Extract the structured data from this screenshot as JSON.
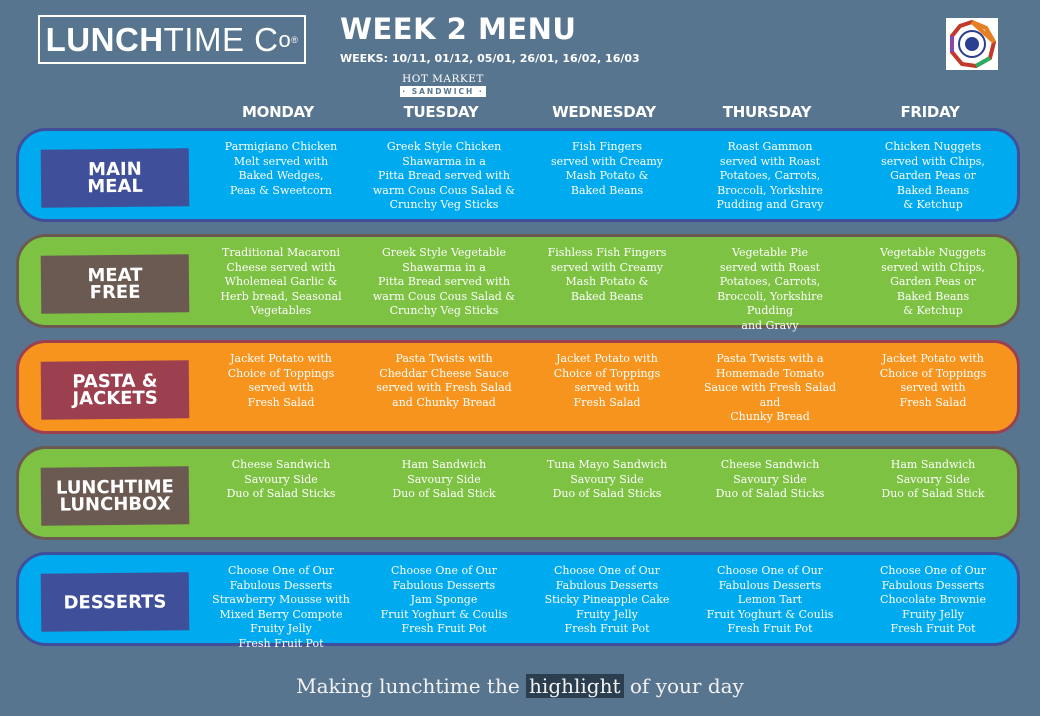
{
  "brand": {
    "logo_bold": "LUNCH",
    "logo_light": "TIME C",
    "logo_o": "o",
    "logo_reg": "®"
  },
  "header": {
    "title": "WEEK 2 MENU",
    "weeks": "WEEKS: 10/11, 01/12, 05/01, 26/01, 16/02, 16/03",
    "hot_market": "HOT MARKET",
    "sandwich": "· SANDWICH ·"
  },
  "days": [
    "MONDAY",
    "TUESDAY",
    "WEDNESDAY",
    "THURSDAY",
    "FRIDAY"
  ],
  "colors": {
    "background": "#587590",
    "blue": "#00aaee",
    "green": "#7dc242",
    "orange": "#f7941d"
  },
  "rows": [
    {
      "label": "MAIN\nMEAL",
      "items": [
        "Parmigiano Chicken\nMelt served with\nBaked Wedges,\nPeas & Sweetcorn",
        "Greek Style Chicken\nShawarma in a\nPitta Bread served with\nwarm Cous Cous Salad &\nCrunchy Veg Sticks",
        "Fish Fingers\nserved with Creamy\nMash Potato &\nBaked Beans",
        "Roast Gammon\nserved with Roast\nPotatoes, Carrots,\nBroccoli, Yorkshire\nPudding and Gravy",
        "Chicken Nuggets\nserved with Chips,\nGarden Peas or\nBaked Beans\n& Ketchup"
      ]
    },
    {
      "label": "MEAT\nFREE",
      "items": [
        "Traditional Macaroni\nCheese served with\nWholemeal Garlic &\nHerb bread, Seasonal\nVegetables",
        "Greek Style Vegetable\nShawarma in a\nPitta Bread served with\nwarm Cous Cous Salad &\nCrunchy Veg Sticks",
        "Fishless Fish Fingers\nserved with Creamy\nMash Potato &\nBaked Beans",
        "Vegetable Pie\nserved with Roast\nPotatoes, Carrots,\nBroccoli, Yorkshire\nPudding\nand Gravy",
        "Vegetable Nuggets\nserved with Chips,\nGarden Peas or\nBaked Beans\n& Ketchup"
      ]
    },
    {
      "label": "PASTA &\nJACKETS",
      "items": [
        "Jacket Potato with\nChoice of Toppings\nserved with\nFresh Salad",
        "Pasta Twists with\nCheddar Cheese Sauce\nserved with Fresh Salad\nand Chunky Bread",
        "Jacket Potato with\nChoice of Toppings\nserved with\nFresh Salad",
        "Pasta Twists with a\nHomemade Tomato\nSauce with Fresh Salad\nand\nChunky Bread",
        "Jacket Potato with\nChoice of Toppings\nserved with\nFresh Salad"
      ]
    },
    {
      "label": "LUNCHTIME\nLUNCHBOX",
      "items": [
        "Cheese Sandwich\nSavoury Side\nDuo of Salad Sticks",
        "Ham Sandwich\nSavoury Side\nDuo of Salad Stick",
        "Tuna Mayo Sandwich\nSavoury Side\nDuo of Salad Sticks",
        "Cheese Sandwich\nSavoury Side\nDuo of Salad Sticks",
        "Ham Sandwich\nSavoury Side\nDuo of Salad Stick"
      ]
    },
    {
      "label": "DESSERTS",
      "items": [
        "Choose One of Our\nFabulous Desserts\nStrawberry Mousse with\nMixed Berry Compote\nFruity Jelly\nFresh Fruit Pot",
        "Choose One of Our\nFabulous Desserts\nJam Sponge\nFruit Yoghurt & Coulis\nFresh Fruit Pot",
        "Choose One of Our\nFabulous Desserts\nSticky Pineapple Cake\nFruity Jelly\nFresh Fruit Pot",
        "Choose One of Our\nFabulous Desserts\nLemon Tart\nFruit Yoghurt & Coulis\nFresh Fruit Pot",
        "Choose One of Our\nFabulous Desserts\nChocolate Brownie\nFruity Jelly\nFresh Fruit Pot"
      ]
    }
  ],
  "tagline": {
    "before": "Making lunchtime the ",
    "highlight": "highlight",
    "after": " of your day"
  }
}
